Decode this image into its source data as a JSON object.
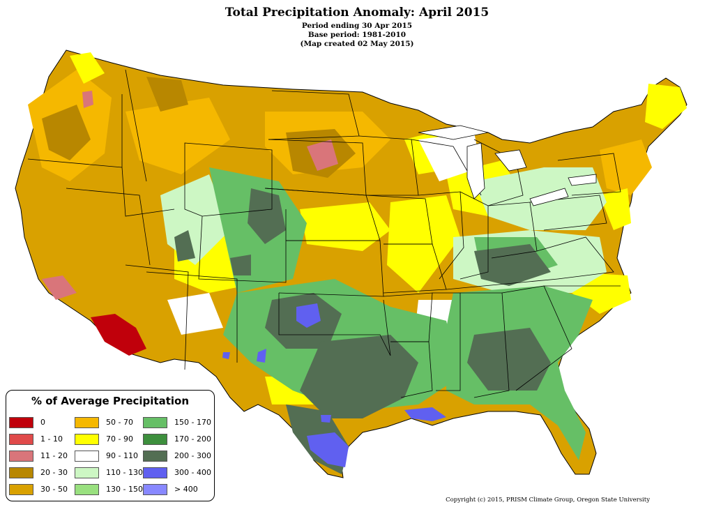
{
  "map": {
    "title": "Total Precipitation Anomaly: April 2015",
    "subtitles": [
      "Period ending 30 Apr 2015",
      "Base period: 1981-2010",
      "(Map created 02 May 2015)"
    ],
    "copyright": "Copyright (c) 2015, PRISM Climate Group, Oregon State University"
  },
  "legend": {
    "title": "% of Average Precipitation",
    "items": [
      {
        "label": "0",
        "color": "#c0000b"
      },
      {
        "label": "1 - 10",
        "color": "#e04a4a"
      },
      {
        "label": "11 - 20",
        "color": "#d9757a"
      },
      {
        "label": "20 - 30",
        "color": "#b88700"
      },
      {
        "label": "30 - 50",
        "color": "#d9a100"
      },
      {
        "label": "50 - 70",
        "color": "#f5b800"
      },
      {
        "label": "70 - 90",
        "color": "#ffff00"
      },
      {
        "label": "90 - 110",
        "color": "#ffffff"
      },
      {
        "label": "110 - 130",
        "color": "#cdf7c4"
      },
      {
        "label": "130 - 150",
        "color": "#99e07f"
      },
      {
        "label": "150 - 170",
        "color": "#66bf66"
      },
      {
        "label": "170 - 200",
        "color": "#3d8f3d"
      },
      {
        "label": "200 - 300",
        "color": "#536e53"
      },
      {
        "label": "300 - 400",
        "color": "#6060f0"
      },
      {
        "label": "> 400",
        "color": "#8888ff"
      }
    ]
  }
}
